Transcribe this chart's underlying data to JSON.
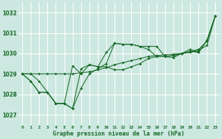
{
  "title": "Graphe pression niveau de la mer (hPa)",
  "bg_color": "#cce8e0",
  "grid_color": "#ffffff",
  "line_color": "#1a6b2a",
  "x_ticks": [
    0,
    1,
    2,
    3,
    4,
    5,
    6,
    7,
    8,
    9,
    10,
    11,
    12,
    13,
    14,
    15,
    16,
    17,
    18,
    19,
    20,
    21,
    22,
    23
  ],
  "ylim": [
    1026.5,
    1032.5
  ],
  "yticks": [
    1027,
    1028,
    1029,
    1030,
    1031,
    1032
  ],
  "series": [
    [
      1029.0,
      1029.0,
      1028.65,
      1028.1,
      1027.55,
      1027.55,
      1027.3,
      1028.3,
      1029.0,
      1029.25,
      1029.5,
      1030.5,
      1030.45,
      1030.45,
      1030.35,
      1030.2,
      1029.85,
      1029.85,
      1029.8,
      1030.0,
      1030.2,
      1030.05,
      1030.65,
      1031.85
    ],
    [
      1029.0,
      1028.65,
      1028.1,
      1028.1,
      1027.55,
      1027.55,
      1027.3,
      1029.25,
      1029.45,
      1029.35,
      1029.35,
      1029.2,
      1029.2,
      1029.35,
      1029.5,
      1029.75,
      1029.85,
      1029.85,
      1029.9,
      1030.0,
      1030.1,
      1030.2,
      1030.6,
      1031.85
    ],
    [
      1029.0,
      1029.0,
      1029.0,
      1029.0,
      1029.0,
      1029.0,
      1029.0,
      1029.05,
      1029.1,
      1029.2,
      1029.3,
      1029.45,
      1029.55,
      1029.65,
      1029.75,
      1029.85,
      1029.9,
      1029.93,
      1029.96,
      1030.0,
      1030.05,
      1030.15,
      1030.4,
      1031.85
    ],
    [
      1029.0,
      1028.65,
      1028.1,
      1028.1,
      1027.55,
      1027.55,
      1029.4,
      1029.0,
      1029.45,
      1029.35,
      1030.05,
      1030.5,
      1030.45,
      1030.45,
      1030.35,
      1030.35,
      1030.35,
      1029.85,
      1029.9,
      1030.0,
      1030.1,
      1030.05,
      1030.65,
      1031.85
    ]
  ]
}
